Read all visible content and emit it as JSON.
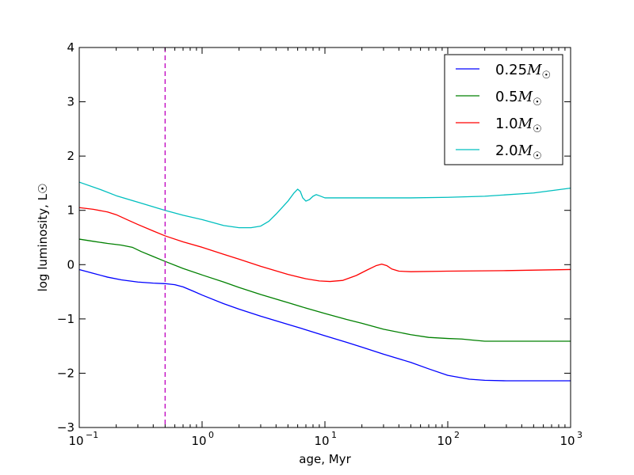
{
  "chart_data": {
    "type": "line",
    "xlabel": "age, Myr",
    "ylabel": "log luminosity, L☉",
    "xscale": "log",
    "xlim": [
      0.1,
      1000
    ],
    "ylim": [
      -3,
      4
    ],
    "x_ticks": [
      {
        "value": 0.1,
        "base": "10",
        "exp": "−1"
      },
      {
        "value": 1,
        "base": "10",
        "exp": "0"
      },
      {
        "value": 10,
        "base": "10",
        "exp": "1"
      },
      {
        "value": 100,
        "base": "10",
        "exp": "2"
      },
      {
        "value": 1000,
        "base": "10",
        "exp": "3"
      }
    ],
    "y_ticks": [
      {
        "value": -3,
        "label": "−3"
      },
      {
        "value": -2,
        "label": "−2"
      },
      {
        "value": -1,
        "label": "−1"
      },
      {
        "value": 0,
        "label": "0"
      },
      {
        "value": 1,
        "label": "1"
      },
      {
        "value": 2,
        "label": "2"
      },
      {
        "value": 3,
        "label": "3"
      },
      {
        "value": 4,
        "label": "4"
      }
    ],
    "legend_position": "top-right",
    "reference_line": {
      "axis": "x",
      "value": 0.5,
      "style": "dashed",
      "color": "#bf00bf"
    },
    "series": [
      {
        "name": "0.25M☉",
        "mass_text": "0.25",
        "color": "#0000ff",
        "points": [
          [
            0.1,
            -0.09
          ],
          [
            0.13,
            -0.16
          ],
          [
            0.17,
            -0.23
          ],
          [
            0.22,
            -0.28
          ],
          [
            0.3,
            -0.32
          ],
          [
            0.4,
            -0.34
          ],
          [
            0.5,
            -0.35
          ],
          [
            0.6,
            -0.37
          ],
          [
            0.7,
            -0.41
          ],
          [
            0.85,
            -0.49
          ],
          [
            1.0,
            -0.56
          ],
          [
            1.5,
            -0.72
          ],
          [
            2,
            -0.82
          ],
          [
            3,
            -0.95
          ],
          [
            5,
            -1.1
          ],
          [
            7,
            -1.2
          ],
          [
            10,
            -1.31
          ],
          [
            15,
            -1.43
          ],
          [
            20,
            -1.52
          ],
          [
            30,
            -1.65
          ],
          [
            50,
            -1.8
          ],
          [
            70,
            -1.92
          ],
          [
            100,
            -2.04
          ],
          [
            150,
            -2.11
          ],
          [
            200,
            -2.13
          ],
          [
            300,
            -2.14
          ],
          [
            500,
            -2.14
          ],
          [
            1000,
            -2.14
          ]
        ]
      },
      {
        "name": "0.5M☉",
        "mass_text": "0.5",
        "color": "#008000",
        "points": [
          [
            0.1,
            0.47
          ],
          [
            0.13,
            0.43
          ],
          [
            0.17,
            0.39
          ],
          [
            0.22,
            0.36
          ],
          [
            0.27,
            0.32
          ],
          [
            0.32,
            0.24
          ],
          [
            0.4,
            0.15
          ],
          [
            0.5,
            0.06
          ],
          [
            0.7,
            -0.07
          ],
          [
            1.0,
            -0.19
          ],
          [
            1.5,
            -0.32
          ],
          [
            2,
            -0.42
          ],
          [
            3,
            -0.55
          ],
          [
            5,
            -0.7
          ],
          [
            7,
            -0.8
          ],
          [
            10,
            -0.9
          ],
          [
            15,
            -1.01
          ],
          [
            20,
            -1.08
          ],
          [
            30,
            -1.19
          ],
          [
            50,
            -1.29
          ],
          [
            70,
            -1.34
          ],
          [
            100,
            -1.36
          ],
          [
            130,
            -1.37
          ],
          [
            160,
            -1.39
          ],
          [
            200,
            -1.41
          ],
          [
            300,
            -1.41
          ],
          [
            500,
            -1.41
          ],
          [
            1000,
            -1.41
          ]
        ]
      },
      {
        "name": "1.0M☉",
        "mass_text": "1.0",
        "color": "#ff0000",
        "points": [
          [
            0.1,
            1.05
          ],
          [
            0.13,
            1.02
          ],
          [
            0.17,
            0.97
          ],
          [
            0.2,
            0.92
          ],
          [
            0.25,
            0.82
          ],
          [
            0.3,
            0.74
          ],
          [
            0.4,
            0.62
          ],
          [
            0.5,
            0.53
          ],
          [
            0.7,
            0.42
          ],
          [
            1.0,
            0.32
          ],
          [
            1.5,
            0.19
          ],
          [
            2,
            0.1
          ],
          [
            3,
            -0.03
          ],
          [
            5,
            -0.18
          ],
          [
            7,
            -0.26
          ],
          [
            9,
            -0.3
          ],
          [
            11,
            -0.31
          ],
          [
            14,
            -0.29
          ],
          [
            18,
            -0.2
          ],
          [
            22,
            -0.1
          ],
          [
            26,
            -0.02
          ],
          [
            29,
            0.01
          ],
          [
            32,
            -0.02
          ],
          [
            35,
            -0.08
          ],
          [
            40,
            -0.12
          ],
          [
            50,
            -0.13
          ],
          [
            100,
            -0.12
          ],
          [
            300,
            -0.11
          ],
          [
            1000,
            -0.09
          ]
        ]
      },
      {
        "name": "2.0M☉",
        "mass_text": "2.0",
        "color": "#00bfbf",
        "points": [
          [
            0.1,
            1.52
          ],
          [
            0.15,
            1.38
          ],
          [
            0.2,
            1.27
          ],
          [
            0.3,
            1.15
          ],
          [
            0.5,
            1.0
          ],
          [
            0.7,
            0.91
          ],
          [
            1.0,
            0.83
          ],
          [
            1.5,
            0.72
          ],
          [
            2.0,
            0.68
          ],
          [
            2.5,
            0.68
          ],
          [
            3.0,
            0.71
          ],
          [
            3.5,
            0.8
          ],
          [
            4.0,
            0.93
          ],
          [
            5.0,
            1.17
          ],
          [
            5.6,
            1.32
          ],
          [
            6.0,
            1.39
          ],
          [
            6.3,
            1.35
          ],
          [
            6.6,
            1.23
          ],
          [
            7.0,
            1.17
          ],
          [
            7.5,
            1.2
          ],
          [
            8.0,
            1.26
          ],
          [
            8.5,
            1.29
          ],
          [
            9.0,
            1.27
          ],
          [
            10.0,
            1.23
          ],
          [
            15,
            1.23
          ],
          [
            30,
            1.23
          ],
          [
            50,
            1.23
          ],
          [
            100,
            1.24
          ],
          [
            200,
            1.26
          ],
          [
            500,
            1.32
          ],
          [
            1000,
            1.41
          ]
        ]
      }
    ]
  }
}
